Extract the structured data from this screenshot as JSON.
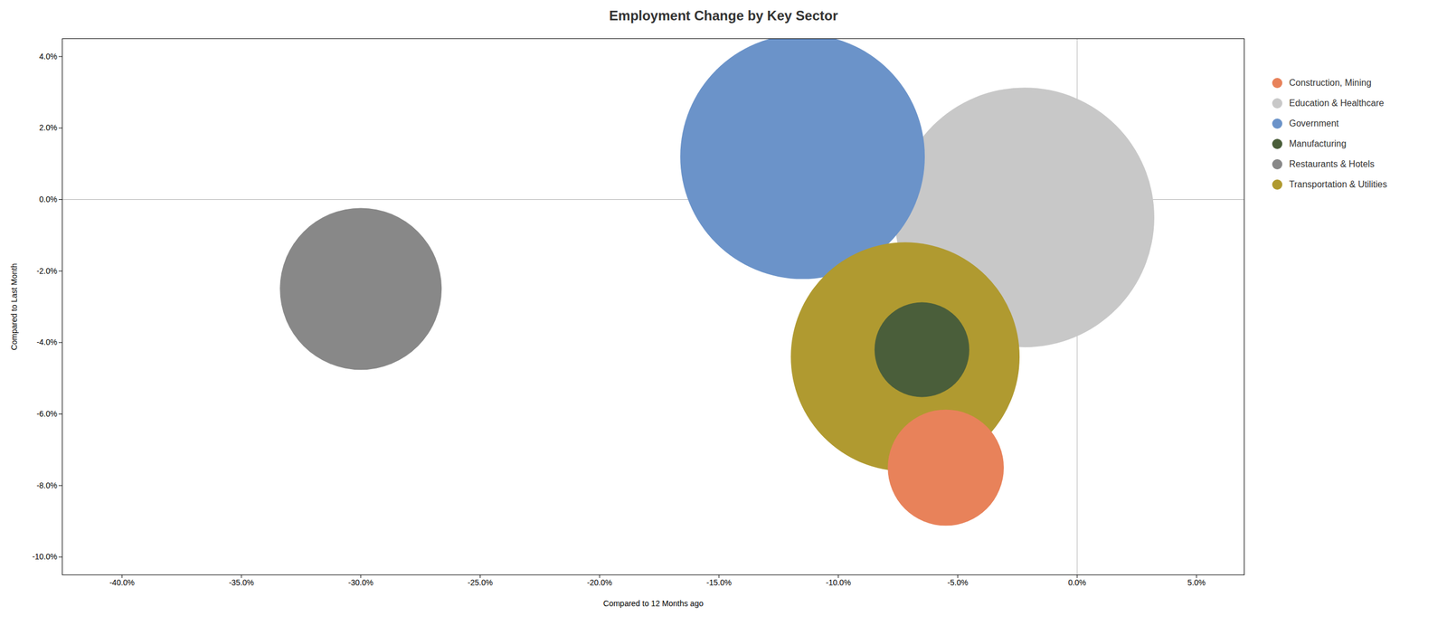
{
  "chart_data": {
    "type": "scatter",
    "title": "Employment Change by Key Sector",
    "xlabel": "Compared to 12 Months ago",
    "ylabel": "Compared to Last Month",
    "xlim": [
      -0.425,
      0.07
    ],
    "ylim": [
      -0.105,
      0.045
    ],
    "xticks": [
      {
        "value": -0.4,
        "label": "-40.0%"
      },
      {
        "value": -0.35,
        "label": "-35.0%"
      },
      {
        "value": -0.3,
        "label": "-30.0%"
      },
      {
        "value": -0.25,
        "label": "-25.0%"
      },
      {
        "value": -0.2,
        "label": "-20.0%"
      },
      {
        "value": -0.15,
        "label": "-15.0%"
      },
      {
        "value": -0.1,
        "label": "-10.0%"
      },
      {
        "value": -0.05,
        "label": "-5.0%"
      },
      {
        "value": 0.0,
        "label": "0.0%"
      },
      {
        "value": 0.05,
        "label": "5.0%"
      }
    ],
    "yticks": [
      {
        "value": -0.1,
        "label": "-10.0%"
      },
      {
        "value": -0.08,
        "label": "-8.0%"
      },
      {
        "value": -0.06,
        "label": "-6.0%"
      },
      {
        "value": -0.04,
        "label": "-4.0%"
      },
      {
        "value": -0.02,
        "label": "-2.0%"
      },
      {
        "value": 0.0,
        "label": "0.0%"
      },
      {
        "value": 0.02,
        "label": "2.0%"
      },
      {
        "value": 0.04,
        "label": "4.0%"
      }
    ],
    "grid": false,
    "legend": "right",
    "series": [
      {
        "name": "Construction, Mining",
        "color": "#e8825a",
        "x": [
          -0.055
        ],
        "values": [
          -0.075
        ],
        "size": [
          18000
        ]
      },
      {
        "name": "Education & Healthcare",
        "color": "#c8c8c8",
        "x": [
          -0.022
        ],
        "values": [
          -0.005
        ],
        "size": [
          90000
        ]
      },
      {
        "name": "Government",
        "color": "#6b93c9",
        "x": [
          -0.115
        ],
        "values": [
          0.012
        ],
        "size": [
          80000
        ]
      },
      {
        "name": "Manufacturing",
        "color": "#4a5e3a",
        "x": [
          -0.065
        ],
        "values": [
          -0.042
        ],
        "size": [
          12000
        ]
      },
      {
        "name": "Restaurants & Hotels",
        "color": "#888888",
        "x": [
          -0.3
        ],
        "values": [
          -0.025
        ],
        "size": [
          35000
        ]
      },
      {
        "name": "Transportation & Utilities",
        "color": "#b09a30",
        "x": [
          -0.072
        ],
        "values": [
          -0.044
        ],
        "size": [
          70000
        ]
      }
    ]
  }
}
